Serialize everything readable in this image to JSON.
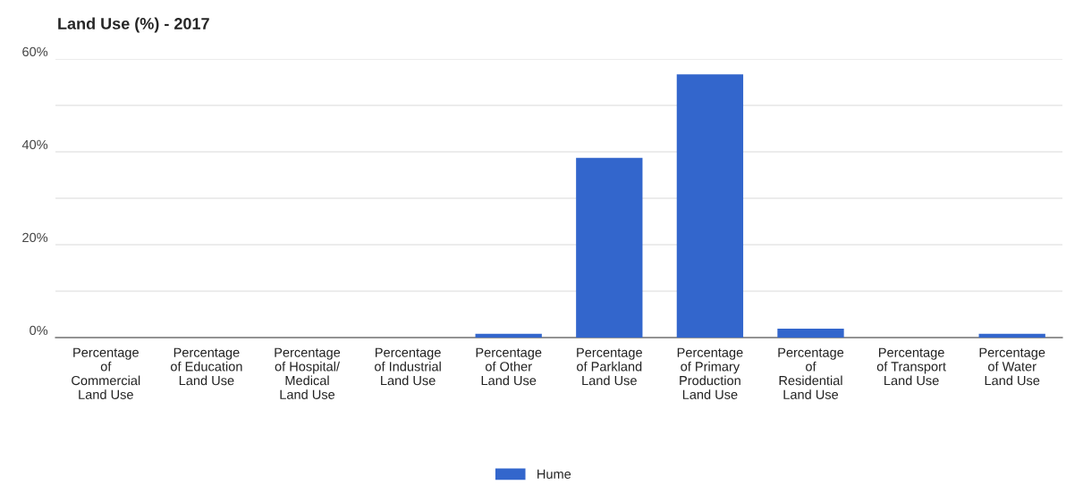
{
  "chart_data": {
    "type": "bar",
    "title": "Land Use (%) - 2017",
    "categories": [
      "Percentage\nof\nCommercial\nLand Use",
      "Percentage\nof Education\nLand Use",
      "Percentage\nof Hospital/\nMedical\nLand Use",
      "Percentage\nof Industrial\nLand Use",
      "Percentage\nof Other\nLand Use",
      "Percentage\nof Parkland\nLand Use",
      "Percentage\nof Primary\nProduction\nLand Use",
      "Percentage\nof\nResidential\nLand Use",
      "Percentage\nof Transport\nLand Use",
      "Percentage\nof Water\nLand Use"
    ],
    "series": [
      {
        "name": "Hume",
        "color": "#3366cc",
        "values": [
          0,
          0,
          0,
          0,
          0.8,
          38.7,
          56.7,
          1.9,
          0,
          0.8
        ]
      }
    ],
    "ylim": [
      0,
      60
    ],
    "yticks": [
      {
        "value": 0,
        "label": "0%"
      },
      {
        "value": 10,
        "label": null
      },
      {
        "value": 20,
        "label": "20%"
      },
      {
        "value": 30,
        "label": null
      },
      {
        "value": 40,
        "label": "40%"
      },
      {
        "value": 50,
        "label": null
      },
      {
        "value": 60,
        "label": "60%"
      }
    ],
    "grid": "y",
    "legend": "bottom"
  }
}
